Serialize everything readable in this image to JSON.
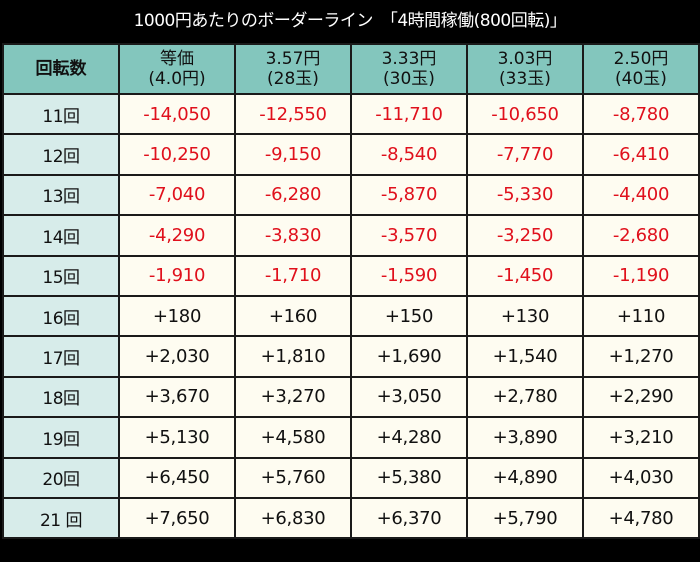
{
  "title": "1000円あたりのボーダーライン　「4時間稼働(800回転)」",
  "colors": {
    "title_bg": "#000000",
    "title_text": "#ffffff",
    "header_bg": "#83c6bd",
    "row_header_bg": "#d7ecea",
    "cell_bg": "#fefcf1",
    "negative_text": "#e0101c",
    "positive_text": "#111111",
    "border": "#1a1a1a"
  },
  "table": {
    "row_header_label": "回転数",
    "columns": [
      {
        "line1": "等価",
        "line2": "(4.0円)"
      },
      {
        "line1": "3.57円",
        "line2": "(28玉)"
      },
      {
        "line1": "3.33円",
        "line2": "(30玉)"
      },
      {
        "line1": "3.03円",
        "line2": "(33玉)"
      },
      {
        "line1": "2.50円",
        "line2": "(40玉)"
      }
    ],
    "rows": [
      {
        "label": "11回",
        "values": [
          "-14,050",
          "-12,550",
          "-11,710",
          "-10,650",
          "-8,780"
        ]
      },
      {
        "label": "12回",
        "values": [
          "-10,250",
          "-9,150",
          "-8,540",
          "-7,770",
          "-6,410"
        ]
      },
      {
        "label": "13回",
        "values": [
          "-7,040",
          "-6,280",
          "-5,870",
          "-5,330",
          "-4,400"
        ]
      },
      {
        "label": "14回",
        "values": [
          "-4,290",
          "-3,830",
          "-3,570",
          "-3,250",
          "-2,680"
        ]
      },
      {
        "label": "15回",
        "values": [
          "-1,910",
          "-1,710",
          "-1,590",
          "-1,450",
          "-1,190"
        ]
      },
      {
        "label": "16回",
        "values": [
          "+180",
          "+160",
          "+150",
          "+130",
          "+110"
        ]
      },
      {
        "label": "17回",
        "values": [
          "+2,030",
          "+1,810",
          "+1,690",
          "+1,540",
          "+1,270"
        ]
      },
      {
        "label": "18回",
        "values": [
          "+3,670",
          "+3,270",
          "+3,050",
          "+2,780",
          "+2,290"
        ]
      },
      {
        "label": "19回",
        "values": [
          "+5,130",
          "+4,580",
          "+4,280",
          "+3,890",
          "+3,210"
        ]
      },
      {
        "label": "20回",
        "values": [
          "+6,450",
          "+5,760",
          "+5,380",
          "+4,890",
          "+4,030"
        ]
      },
      {
        "label": "21 回",
        "values": [
          "+7,650",
          "+6,830",
          "+6,370",
          "+5,790",
          "+4,780"
        ]
      }
    ]
  }
}
